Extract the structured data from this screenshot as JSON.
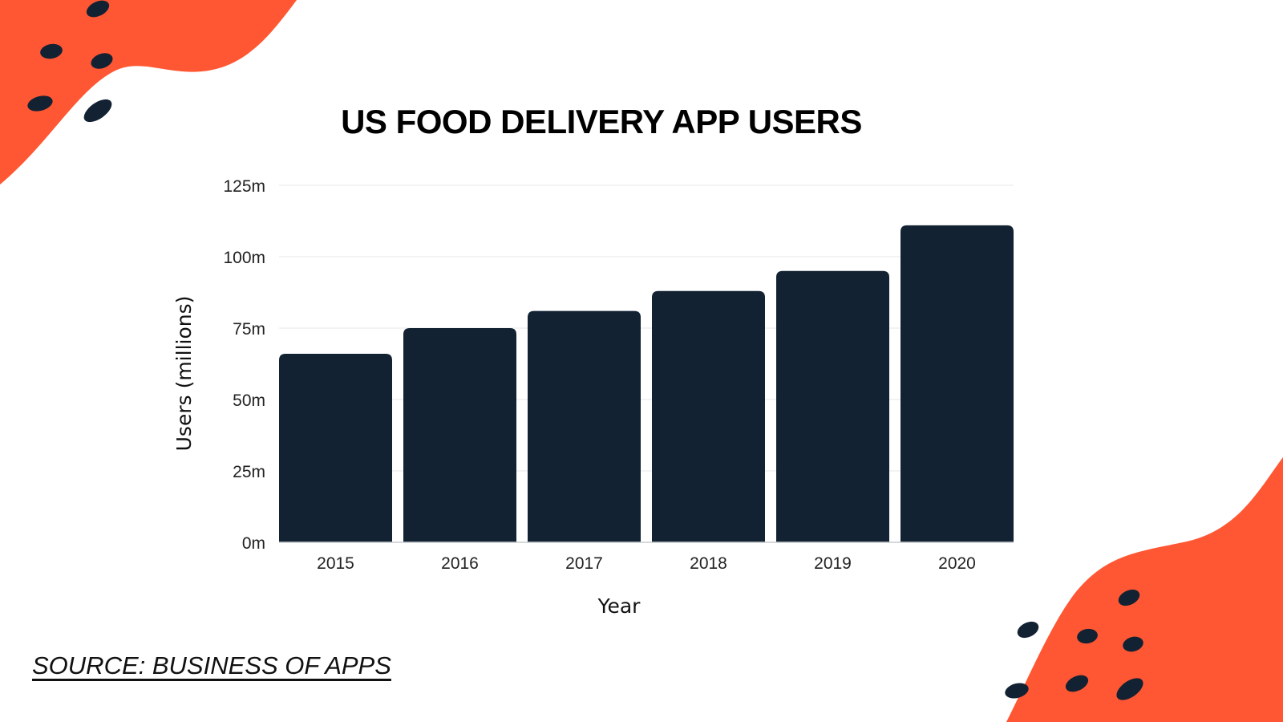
{
  "colors": {
    "accent": "#ff5733",
    "bar": "#132233",
    "dot": "#132233",
    "grid": "#ececec",
    "background": "#ffffff"
  },
  "source": "SOURCE: BUSINESS OF APPS",
  "chart_data": {
    "type": "bar",
    "title": "US FOOD DELIVERY APP USERS",
    "xlabel": "Year",
    "ylabel": "Users (millions)",
    "categories": [
      "2015",
      "2016",
      "2017",
      "2018",
      "2019",
      "2020"
    ],
    "values": [
      66,
      75,
      81,
      88,
      95,
      111
    ],
    "unit": "millions",
    "ylim": [
      0,
      125
    ],
    "yticks": [
      0,
      25,
      50,
      75,
      100,
      125
    ],
    "ytick_labels": [
      "0m",
      "25m",
      "50m",
      "75m",
      "100m",
      "125m"
    ],
    "grid": true,
    "legend": "none"
  }
}
